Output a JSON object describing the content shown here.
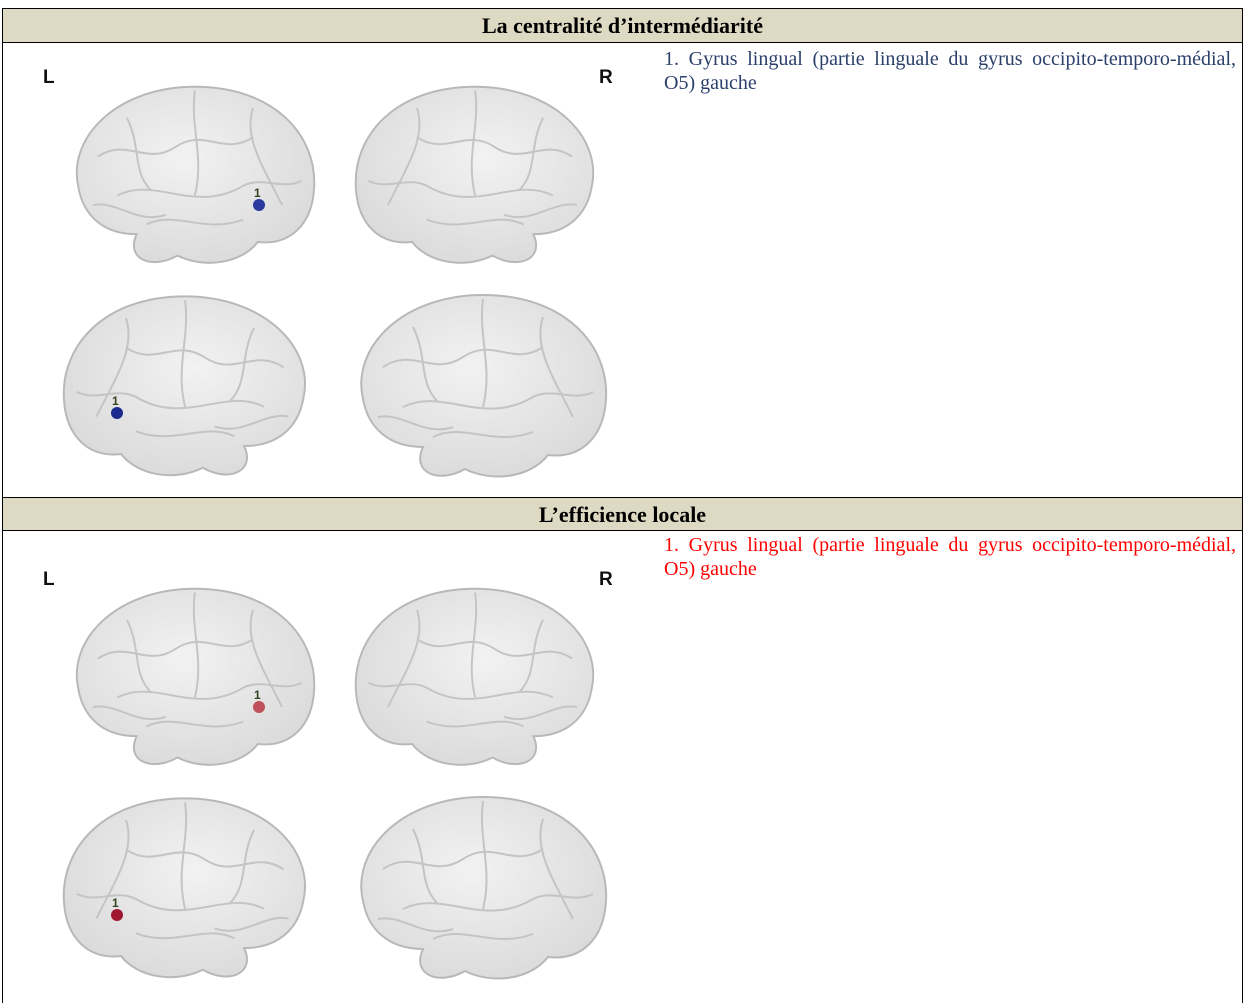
{
  "sections": [
    {
      "title": "La centralité d’intermédiarité",
      "left_label": "L",
      "right_label": "R",
      "node_label": "1",
      "description": "1. Gyrus lingual (partie linguale du gyrus occipito-temporo-médial, O5) gauche"
    },
    {
      "title": "L’efficience locale",
      "left_label": "L",
      "right_label": "R",
      "node_label": "1",
      "description": "1. Gyrus lingual (partie linguale du gyrus occipito-temporo-médial, O5) gauche"
    }
  ]
}
